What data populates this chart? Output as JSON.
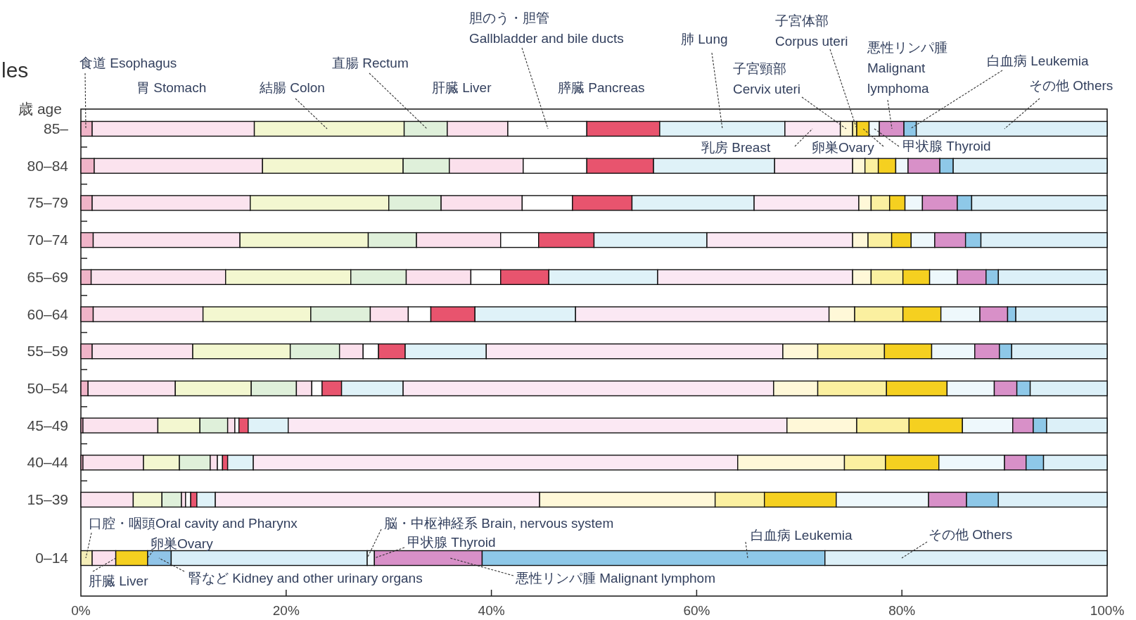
{
  "chart_data": {
    "type": "bar",
    "orientation": "horizontal",
    "stacked": true,
    "title": "les",
    "ylabel": "歳 age",
    "categories": [
      "85–",
      "80–84",
      "75–79",
      "70–74",
      "65–69",
      "60–64",
      "55–59",
      "50–54",
      "45–49",
      "40–44",
      "15–39",
      "0–14"
    ],
    "xlim": [
      0,
      100
    ],
    "xticks": [
      {
        "value": 0,
        "label": "0%"
      },
      {
        "value": 20,
        "label": "20%"
      },
      {
        "value": 40,
        "label": "40%"
      },
      {
        "value": 60,
        "label": "60%"
      },
      {
        "value": 80,
        "label": "80%"
      },
      {
        "value": 100,
        "label": "100%"
      }
    ],
    "series": [
      {
        "color": "#f5eeb8",
        "values": [
          null,
          null,
          null,
          null,
          null,
          null,
          null,
          null,
          null,
          null,
          null,
          1.1
        ]
      },
      {
        "color": "#f0b4c8",
        "values": [
          1.1,
          1.3,
          1.1,
          1.2,
          1.0,
          1.2,
          1.1,
          0.7,
          0.2,
          0.2,
          null,
          null
        ]
      },
      {
        "color": "#fbe3ee",
        "values": [
          15.8,
          16.4,
          15.4,
          14.3,
          13.1,
          10.7,
          9.8,
          8.5,
          7.3,
          5.9,
          5.1,
          null
        ]
      },
      {
        "color": "#f3f7d0",
        "values": [
          14.6,
          13.7,
          13.5,
          12.5,
          12.2,
          10.5,
          9.5,
          7.4,
          4.1,
          3.5,
          2.8,
          null
        ]
      },
      {
        "color": "#dff0da",
        "values": [
          4.2,
          4.5,
          5.1,
          4.7,
          5.4,
          5.8,
          4.8,
          4.4,
          2.7,
          3.0,
          1.9,
          null
        ]
      },
      {
        "color": "#fbe0ec",
        "values": [
          5.9,
          7.2,
          7.9,
          8.2,
          6.3,
          3.7,
          2.3,
          1.5,
          0.7,
          0.7,
          0.4,
          2.3
        ]
      },
      {
        "color": "#ffffff",
        "values": [
          7.7,
          6.2,
          4.9,
          3.7,
          2.9,
          2.2,
          1.5,
          1.0,
          0.4,
          0.5,
          0.5,
          null
        ]
      },
      {
        "color": "#e8546e",
        "values": [
          7.1,
          6.5,
          5.8,
          5.4,
          4.7,
          4.3,
          2.6,
          1.9,
          0.9,
          0.5,
          0.6,
          null
        ]
      },
      {
        "color": "#dff2f8",
        "values": [
          12.2,
          11.8,
          11.9,
          11.0,
          10.6,
          9.8,
          7.9,
          6.0,
          3.9,
          2.5,
          1.8,
          null
        ]
      },
      {
        "color": "#fbe8f3",
        "values": [
          5.4,
          7.6,
          10.2,
          14.2,
          19.0,
          24.7,
          28.9,
          36.1,
          48.6,
          47.2,
          31.6,
          null
        ]
      },
      {
        "color": "#fff8d8",
        "values": [
          1.2,
          1.2,
          1.2,
          1.5,
          1.8,
          2.5,
          3.4,
          4.3,
          6.8,
          10.4,
          17.1,
          null
        ]
      },
      {
        "color": "#fbf0a0",
        "values": [
          0.4,
          1.3,
          1.8,
          2.3,
          3.1,
          4.7,
          6.5,
          6.7,
          5.1,
          4.0,
          4.8,
          null
        ]
      },
      {
        "color": "#f5d020",
        "values": [
          1.2,
          1.7,
          1.5,
          1.9,
          2.6,
          3.7,
          4.6,
          5.9,
          5.2,
          5.2,
          7.0,
          3.1
        ]
      },
      {
        "color": "#90c4e8",
        "values": [
          null,
          null,
          null,
          null,
          null,
          null,
          null,
          null,
          null,
          null,
          null,
          2.3
        ]
      },
      {
        "color": "#d8eef8",
        "values": [
          null,
          null,
          null,
          null,
          null,
          null,
          null,
          null,
          null,
          null,
          null,
          19.1
        ]
      },
      {
        "color": "#eef8fc",
        "values": [
          1.0,
          1.2,
          1.7,
          2.3,
          2.7,
          3.8,
          4.2,
          4.6,
          4.9,
          6.4,
          9.0,
          0.7
        ]
      },
      {
        "color": "#d890c8",
        "values": [
          2.4,
          3.1,
          3.4,
          3.0,
          2.8,
          2.7,
          2.4,
          2.2,
          2.0,
          2.1,
          3.7,
          10.5
        ]
      },
      {
        "color": "#8ec8e8",
        "values": [
          1.2,
          1.3,
          1.4,
          1.5,
          1.2,
          0.8,
          1.2,
          1.3,
          1.3,
          1.7,
          3.1,
          33.4
        ]
      },
      {
        "color": "#dcf0f8",
        "values": [
          18.6,
          15.0,
          13.2,
          12.3,
          10.6,
          8.9,
          9.3,
          7.5,
          5.9,
          6.2,
          10.6,
          27.5
        ]
      }
    ],
    "annotations": [
      "食道 Esophagus",
      "胃 Stomach",
      "結腸 Colon",
      "直腸 Rectum",
      "肝臓 Liver",
      "胆のう・胆管\nGallbladder and bile ducts",
      "膵臓 Pancreas",
      "肺 Lung",
      "子宮頸部\nCervix uteri",
      {
        "text": "子宮体部\nCorpus uteri",
        "x": 75.6,
        "y": "85–"
      },
      "悪性リンパ腫\nMalignant\nlymphoma",
      "白血病 Leukemia",
      "その他 Others",
      "乳房 Breast",
      "卵巣Ovary",
      "甲状腺 Thyroid",
      "口腔・咽頭Oral cavity and Pharynx",
      {
        "text": "卵巣Ovary",
        "x": 6.5,
        "y": "0–14"
      },
      {
        "text": "脳・中枢神経系 Brain, nervous system",
        "x": 27.9,
        "y": "0–14"
      },
      {
        "text": "甲状腺 Thyroid",
        "x": 28.6,
        "y": "0–14"
      },
      "白血病 Leukemia",
      "その他 Others",
      {
        "text": "肝臓 Liver",
        "x": 3.4,
        "y": "0–14"
      },
      "腎など Kidney and other urinary organs",
      "悪性リンパ腫 Malignant lymphom"
    ]
  }
}
